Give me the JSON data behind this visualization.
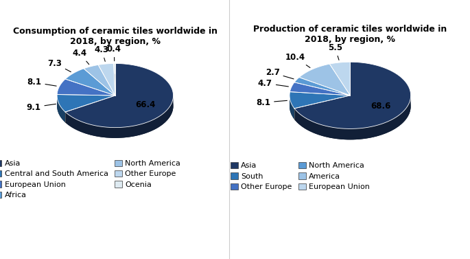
{
  "chart1": {
    "title": "Consumption of ceramic tiles worldwide in\n2018, by region, %",
    "values": [
      66.4,
      9.1,
      8.1,
      7.3,
      4.4,
      4.3,
      0.4
    ],
    "labels": [
      "66.4",
      "9.1",
      "8.1",
      "7.3",
      "4.4",
      "4.3",
      "0.4"
    ],
    "colors": [
      "#1F3864",
      "#2E75B6",
      "#4472C4",
      "#5B9BD5",
      "#9DC3E6",
      "#BDD7EE",
      "#DEEAF1"
    ],
    "legend_labels": [
      "Asia",
      "Central and South America",
      "European Union",
      "Africa",
      "North America",
      "Other Europe",
      "Ocenia"
    ],
    "startangle": 90
  },
  "chart2": {
    "title": "Production of ceramic tiles worldwide in\n2018, by region, %",
    "values": [
      68.6,
      8.1,
      4.7,
      2.7,
      10.4,
      5.5
    ],
    "labels": [
      "68.6",
      "8.1",
      "4.7",
      "2.7",
      "10.4",
      "5.5"
    ],
    "colors": [
      "#1F3864",
      "#2E75B6",
      "#4472C4",
      "#5B9BD5",
      "#9DC3E6",
      "#BDD7EE"
    ],
    "legend_labels": [
      "Asia",
      "South",
      "Other Europe",
      "North America",
      "America",
      "European Union"
    ],
    "startangle": 90
  },
  "bg_color": "#FFFFFF",
  "title_fontsize": 9.0,
  "label_fontsize": 8.5,
  "legend_fontsize": 8.0
}
